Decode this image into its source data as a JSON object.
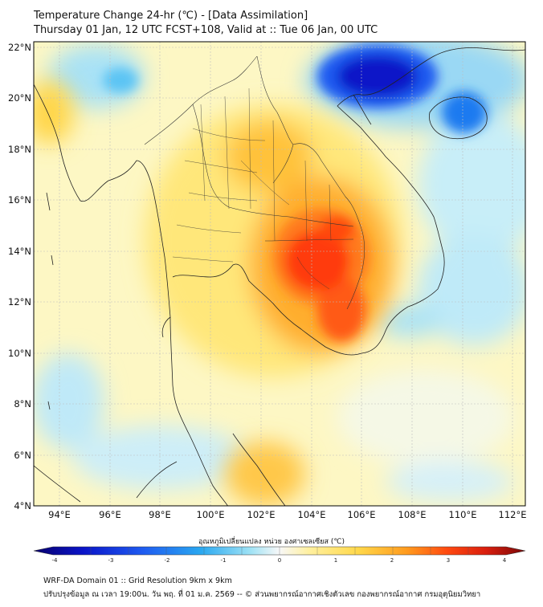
{
  "header": {
    "title_line1": "Temperature Change 24-hr (℃) - [Data Assimilation]",
    "title_line2": "Thursday 01 Jan, 12 UTC FCST+108, Valid at :: Tue 06 Jan, 00 UTC"
  },
  "map": {
    "lat_labels": [
      "22°N",
      "20°N",
      "18°N",
      "16°N",
      "14°N",
      "12°N",
      "10°N",
      "8°N",
      "6°N",
      "4°N"
    ],
    "lon_labels": [
      "94°E",
      "96°E",
      "98°E",
      "100°E",
      "102°E",
      "104°E",
      "106°E",
      "108°E",
      "110°E",
      "112°E"
    ],
    "lat_range": [
      4,
      22.2
    ],
    "lon_range": [
      93,
      112.5
    ],
    "features": [
      {
        "name": "warm-max-cambodia",
        "lon": 104.3,
        "lat": 13.3,
        "change": 3.4
      },
      {
        "name": "warm-north-cambodia",
        "lon": 105.1,
        "lat": 14.8,
        "change": 3.0
      },
      {
        "name": "warm-mekong",
        "lon": 104.5,
        "lat": 11.3,
        "change": 2.8
      },
      {
        "name": "warm-northeast-thailand",
        "lon": 102.8,
        "lat": 17.3,
        "change": 2.0
      },
      {
        "name": "warm-gulf-south",
        "lon": 102.7,
        "lat": 5.3,
        "change": 1.8
      },
      {
        "name": "cool-gulf-tonkin",
        "lon": 105.8,
        "lat": 21.3,
        "change": -3.5
      },
      {
        "name": "cool-hainan",
        "lon": 110.1,
        "lat": 19.4,
        "change": -2.5
      },
      {
        "name": "cool-south-china-sea",
        "lon": 110.5,
        "lat": 14.0,
        "change": -0.8
      },
      {
        "name": "cool-andaman-north",
        "lon": 95.6,
        "lat": 20.5,
        "change": -1.0
      },
      {
        "name": "cool-andaman-south",
        "lon": 94.5,
        "lat": 8.0,
        "change": -1.2
      }
    ]
  },
  "colorbar": {
    "label": "อุณหภูมิเปลี่ยนแปลง หน่วย องศาเซลเซียส (℃)",
    "ticks": [
      "-4",
      "-3",
      "-2",
      "-1",
      "0",
      "1",
      "2",
      "3",
      "4"
    ],
    "range": [
      -4,
      4
    ],
    "colors": [
      "#08006c",
      "#0a14c8",
      "#1e5af0",
      "#2aa8f0",
      "#9ee2f5",
      "#f8f8f8",
      "#fff0a0",
      "#ffd84a",
      "#ff9a1e",
      "#ff4a10",
      "#d91e0e",
      "#7a0808"
    ]
  },
  "footer": {
    "line1": "WRF-DA Domain 01 :: Grid Resolution 9km x 9km",
    "line2": "ปรับปรุงข้อมูล ณ เวลา 19:00น. วัน พฤ. ที่ 01 ม.ค. 2569 -- © ส่วนพยากรณ์อากาศเชิงตัวเลข กองพยากรณ์อากาศ กรมอุตุนิยมวิทยา"
  }
}
